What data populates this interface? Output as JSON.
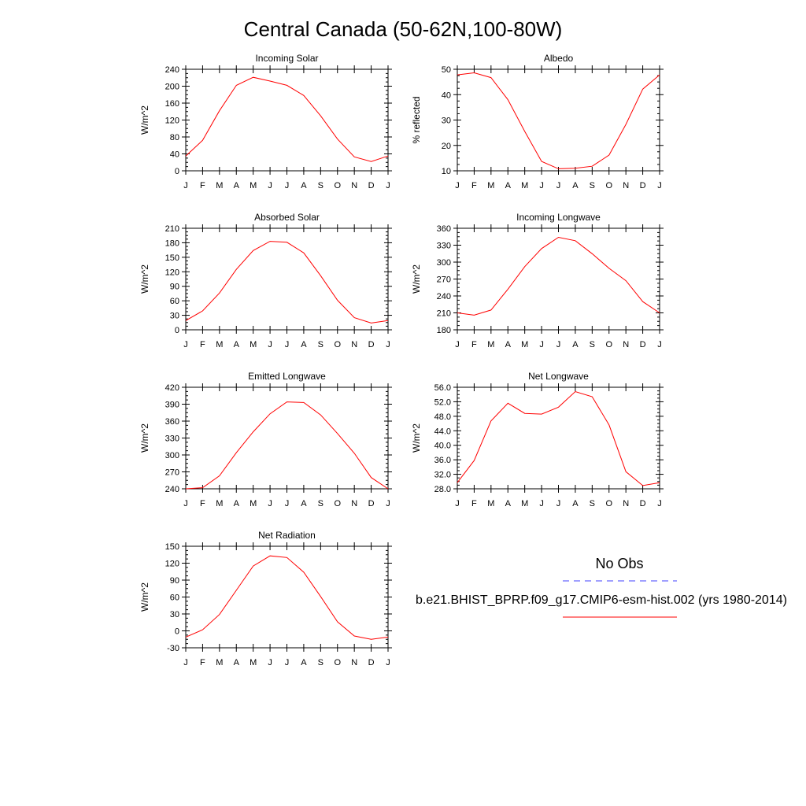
{
  "title": "Central Canada (50-62N,100-80W)",
  "colors": {
    "model_line": "#ff0000",
    "obs_line": "#4040ff",
    "axes": "#000000"
  },
  "chart_data": [
    {
      "type": "line",
      "title": "Incoming Solar",
      "ylabel": "W/m^2",
      "ylim": [
        0,
        240
      ],
      "yticks": [
        "0",
        "40",
        "80",
        "120",
        "160",
        "200",
        "240"
      ],
      "xticklabels": [
        "J",
        "F",
        "M",
        "A",
        "M",
        "J",
        "J",
        "A",
        "S",
        "O",
        "N",
        "D",
        "J"
      ],
      "series": [
        {
          "values": [
            35,
            72,
            142,
            202,
            221,
            212,
            202,
            178,
            130,
            75,
            33,
            22,
            35
          ]
        }
      ]
    },
    {
      "type": "line",
      "title": "Albedo",
      "ylabel": "% reflected",
      "ylim": [
        10,
        50
      ],
      "yticks": [
        "10",
        "20",
        "30",
        "40",
        "50"
      ],
      "xticklabels": [
        "J",
        "F",
        "M",
        "A",
        "M",
        "J",
        "J",
        "A",
        "S",
        "O",
        "N",
        "D",
        "J"
      ],
      "series": [
        {
          "values": [
            47.8,
            48.6,
            46.7,
            38.0,
            25.5,
            13.7,
            10.8,
            11.0,
            11.8,
            16.2,
            28.3,
            42.2,
            47.8
          ]
        }
      ]
    },
    {
      "type": "line",
      "title": "Absorbed Solar",
      "ylabel": "W/m^2",
      "ylim": [
        0,
        210
      ],
      "yticks": [
        "0",
        "30",
        "60",
        "90",
        "120",
        "150",
        "180",
        "210"
      ],
      "xticklabels": [
        "J",
        "F",
        "M",
        "A",
        "M",
        "J",
        "J",
        "A",
        "S",
        "O",
        "N",
        "D",
        "J"
      ],
      "series": [
        {
          "values": [
            19,
            39,
            76,
            125,
            164,
            183,
            181,
            159,
            112,
            61,
            25,
            14,
            19
          ]
        }
      ]
    },
    {
      "type": "line",
      "title": "Incoming Longwave",
      "ylabel": "W/m^2",
      "ylim": [
        180,
        360
      ],
      "yticks": [
        "180",
        "210",
        "240",
        "270",
        "300",
        "330",
        "360"
      ],
      "xticklabels": [
        "J",
        "F",
        "M",
        "A",
        "M",
        "J",
        "J",
        "A",
        "S",
        "O",
        "N",
        "D",
        "J"
      ],
      "series": [
        {
          "values": [
            210,
            206,
            215,
            252,
            292,
            324,
            344,
            338,
            315,
            289,
            267,
            230,
            210
          ]
        }
      ]
    },
    {
      "type": "line",
      "title": "Emitted Longwave",
      "ylabel": "W/m^2",
      "ylim": [
        240,
        420
      ],
      "yticks": [
        "240",
        "270",
        "300",
        "330",
        "360",
        "390",
        "420"
      ],
      "xticklabels": [
        "J",
        "F",
        "M",
        "A",
        "M",
        "J",
        "J",
        "A",
        "S",
        "O",
        "N",
        "D",
        "J"
      ],
      "series": [
        {
          "values": [
            240,
            242,
            263,
            304,
            341,
            373,
            394,
            393,
            371,
            338,
            303,
            260,
            240
          ]
        }
      ]
    },
    {
      "type": "line",
      "title": "Net Longwave",
      "ylabel": "W/m^2",
      "ylim": [
        28,
        56
      ],
      "yticks": [
        "28.0",
        "32.0",
        "36.0",
        "40.0",
        "44.0",
        "48.0",
        "52.0",
        "56.0"
      ],
      "xticklabels": [
        "J",
        "F",
        "M",
        "A",
        "M",
        "J",
        "J",
        "A",
        "S",
        "O",
        "N",
        "D",
        "J"
      ],
      "series": [
        {
          "values": [
            29.7,
            35.8,
            46.7,
            51.6,
            48.8,
            48.6,
            50.5,
            54.8,
            53.4,
            45.6,
            32.7,
            28.9,
            29.7
          ]
        }
      ]
    },
    {
      "type": "line",
      "title": "Net Radiation",
      "ylabel": "W/m^2",
      "ylim": [
        -30,
        150
      ],
      "yticks": [
        "-30",
        "0",
        "30",
        "60",
        "90",
        "120",
        "150"
      ],
      "xticklabels": [
        "J",
        "F",
        "M",
        "A",
        "M",
        "J",
        "J",
        "A",
        "S",
        "O",
        "N",
        "D",
        "J"
      ],
      "series": [
        {
          "values": [
            -11,
            2,
            29,
            72,
            115,
            133,
            130,
            104,
            61,
            16,
            -9,
            -15,
            -11
          ]
        }
      ]
    }
  ],
  "legend": {
    "obs_label": "No Obs",
    "model_label": "b.e21.BHIST_BPRP.f09_g17.CMIP6-esm-hist.002 (yrs 1980-2014)"
  }
}
